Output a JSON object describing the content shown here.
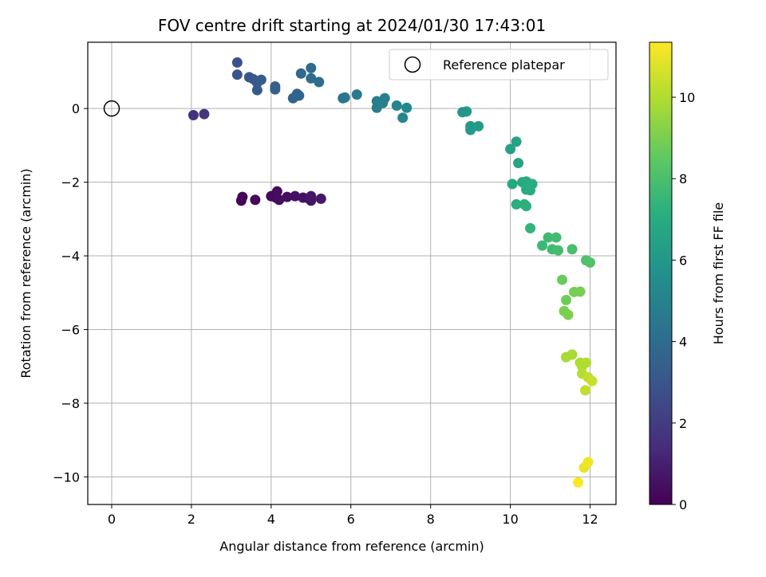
{
  "chart_data": {
    "type": "scatter",
    "title": "FOV centre drift starting at 2024/01/30 17:43:01",
    "xlabel": "Angular distance from reference (arcmin)",
    "ylabel": "Rotation from reference (arcmin)",
    "xlim": [
      -0.6,
      12.65
    ],
    "ylim": [
      -10.75,
      1.8
    ],
    "xticks": [
      0,
      2,
      4,
      6,
      8,
      10,
      12
    ],
    "yticks": [
      0,
      -2,
      -4,
      -6,
      -8,
      -10
    ],
    "grid": true,
    "legend": {
      "position": "top-right",
      "entries": [
        "Reference platepar"
      ]
    },
    "reference_point": {
      "x": 0,
      "y": 0
    },
    "colorbar": {
      "label": "Hours from first FF file",
      "range": [
        0,
        11.35
      ],
      "ticks": [
        0,
        2,
        4,
        6,
        8,
        10
      ],
      "colormap": "viridis"
    },
    "points": [
      {
        "x": 3.25,
        "y": -2.5,
        "h": 0.1
      },
      {
        "x": 3.28,
        "y": -2.4,
        "h": 0.15
      },
      {
        "x": 3.6,
        "y": -2.48,
        "h": 0.2
      },
      {
        "x": 4.0,
        "y": -2.38,
        "h": 0.25
      },
      {
        "x": 4.12,
        "y": -2.42,
        "h": 0.3
      },
      {
        "x": 4.15,
        "y": -2.25,
        "h": 0.35
      },
      {
        "x": 4.2,
        "y": -2.48,
        "h": 0.4
      },
      {
        "x": 4.4,
        "y": -2.4,
        "h": 0.45
      },
      {
        "x": 4.6,
        "y": -2.38,
        "h": 0.5
      },
      {
        "x": 4.8,
        "y": -2.42,
        "h": 0.55
      },
      {
        "x": 4.95,
        "y": -2.45,
        "h": 0.6
      },
      {
        "x": 5.0,
        "y": -2.5,
        "h": 0.65
      },
      {
        "x": 5.0,
        "y": -2.38,
        "h": 0.7
      },
      {
        "x": 5.25,
        "y": -2.45,
        "h": 0.75
      },
      {
        "x": 2.05,
        "y": -0.18,
        "h": 1.6
      },
      {
        "x": 2.32,
        "y": -0.15,
        "h": 1.7
      },
      {
        "x": 3.15,
        "y": 1.25,
        "h": 2.8
      },
      {
        "x": 3.15,
        "y": 0.92,
        "h": 2.9
      },
      {
        "x": 3.45,
        "y": 0.85,
        "h": 3.0
      },
      {
        "x": 3.55,
        "y": 0.8,
        "h": 3.05
      },
      {
        "x": 3.65,
        "y": 0.7,
        "h": 3.1
      },
      {
        "x": 3.65,
        "y": 0.5,
        "h": 3.2
      },
      {
        "x": 3.75,
        "y": 0.78,
        "h": 3.3
      },
      {
        "x": 4.1,
        "y": 0.6,
        "h": 3.4
      },
      {
        "x": 4.1,
        "y": 0.52,
        "h": 3.5
      },
      {
        "x": 4.55,
        "y": 0.28,
        "h": 3.6
      },
      {
        "x": 4.65,
        "y": 0.4,
        "h": 3.65
      },
      {
        "x": 4.7,
        "y": 0.35,
        "h": 3.7
      },
      {
        "x": 4.75,
        "y": 0.95,
        "h": 3.8
      },
      {
        "x": 5.0,
        "y": 1.1,
        "h": 3.9
      },
      {
        "x": 5.0,
        "y": 0.82,
        "h": 3.95
      },
      {
        "x": 5.2,
        "y": 0.72,
        "h": 4.0
      },
      {
        "x": 5.8,
        "y": 0.28,
        "h": 4.4
      },
      {
        "x": 5.85,
        "y": 0.3,
        "h": 4.45
      },
      {
        "x": 6.15,
        "y": 0.38,
        "h": 4.6
      },
      {
        "x": 6.65,
        "y": 0.02,
        "h": 4.8
      },
      {
        "x": 6.65,
        "y": 0.2,
        "h": 4.85
      },
      {
        "x": 6.8,
        "y": 0.15,
        "h": 4.9
      },
      {
        "x": 6.85,
        "y": 0.28,
        "h": 4.95
      },
      {
        "x": 7.15,
        "y": 0.08,
        "h": 5.1
      },
      {
        "x": 7.3,
        "y": -0.25,
        "h": 5.2
      },
      {
        "x": 7.4,
        "y": 0.02,
        "h": 5.3
      },
      {
        "x": 8.8,
        "y": -0.1,
        "h": 5.9
      },
      {
        "x": 8.9,
        "y": -0.08,
        "h": 5.95
      },
      {
        "x": 9.0,
        "y": -0.48,
        "h": 6.05
      },
      {
        "x": 9.0,
        "y": -0.58,
        "h": 6.1
      },
      {
        "x": 9.2,
        "y": -0.48,
        "h": 6.15
      },
      {
        "x": 10.0,
        "y": -1.1,
        "h": 6.5
      },
      {
        "x": 10.15,
        "y": -0.9,
        "h": 6.55
      },
      {
        "x": 10.2,
        "y": -1.48,
        "h": 6.6
      },
      {
        "x": 10.05,
        "y": -2.05,
        "h": 6.8
      },
      {
        "x": 10.3,
        "y": -2.0,
        "h": 6.85
      },
      {
        "x": 10.4,
        "y": -1.98,
        "h": 6.9
      },
      {
        "x": 10.4,
        "y": -2.2,
        "h": 6.95
      },
      {
        "x": 10.55,
        "y": -2.05,
        "h": 7.0
      },
      {
        "x": 10.5,
        "y": -2.22,
        "h": 7.05
      },
      {
        "x": 10.15,
        "y": -2.6,
        "h": 7.1
      },
      {
        "x": 10.35,
        "y": -2.6,
        "h": 7.15
      },
      {
        "x": 10.4,
        "y": -2.65,
        "h": 7.2
      },
      {
        "x": 10.5,
        "y": -3.25,
        "h": 7.4
      },
      {
        "x": 10.8,
        "y": -3.72,
        "h": 7.6
      },
      {
        "x": 10.95,
        "y": -3.5,
        "h": 7.7
      },
      {
        "x": 11.05,
        "y": -3.82,
        "h": 7.75
      },
      {
        "x": 11.15,
        "y": -3.5,
        "h": 7.8
      },
      {
        "x": 11.2,
        "y": -3.85,
        "h": 7.85
      },
      {
        "x": 11.55,
        "y": -3.82,
        "h": 7.95
      },
      {
        "x": 11.9,
        "y": -4.12,
        "h": 8.1
      },
      {
        "x": 12.0,
        "y": -4.18,
        "h": 8.15
      },
      {
        "x": 11.3,
        "y": -4.65,
        "h": 8.7
      },
      {
        "x": 11.4,
        "y": -5.2,
        "h": 8.8
      },
      {
        "x": 11.6,
        "y": -4.98,
        "h": 8.9
      },
      {
        "x": 11.75,
        "y": -4.97,
        "h": 8.95
      },
      {
        "x": 11.35,
        "y": -5.5,
        "h": 9.0
      },
      {
        "x": 11.45,
        "y": -5.6,
        "h": 9.05
      },
      {
        "x": 11.4,
        "y": -6.75,
        "h": 9.8
      },
      {
        "x": 11.55,
        "y": -6.68,
        "h": 9.85
      },
      {
        "x": 11.75,
        "y": -6.9,
        "h": 9.9
      },
      {
        "x": 11.8,
        "y": -7.0,
        "h": 9.95
      },
      {
        "x": 11.9,
        "y": -6.9,
        "h": 10.0
      },
      {
        "x": 11.8,
        "y": -7.2,
        "h": 10.1
      },
      {
        "x": 11.95,
        "y": -7.3,
        "h": 10.2
      },
      {
        "x": 11.88,
        "y": -7.65,
        "h": 10.3
      },
      {
        "x": 12.05,
        "y": -7.4,
        "h": 10.4
      },
      {
        "x": 11.85,
        "y": -9.75,
        "h": 11.0
      },
      {
        "x": 11.95,
        "y": -9.6,
        "h": 11.1
      },
      {
        "x": 11.7,
        "y": -10.15,
        "h": 11.3
      }
    ]
  }
}
